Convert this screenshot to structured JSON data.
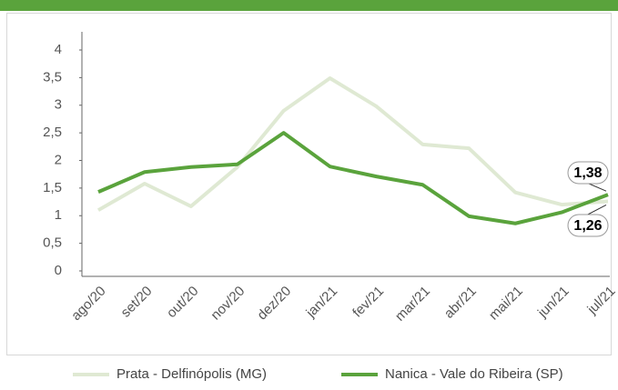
{
  "chart_data": {
    "type": "line",
    "categories": [
      "ago/20",
      "set/20",
      "out/20",
      "nov/20",
      "dez/20",
      "jan/21",
      "fev/21",
      "mar/21",
      "abr/21",
      "mai/21",
      "jun/21",
      "jul/21"
    ],
    "series": [
      {
        "name": "Prata - Delfinópolis (MG)",
        "color": "#dfe9d3",
        "values": [
          1.1,
          1.58,
          1.17,
          1.88,
          2.9,
          3.49,
          2.98,
          2.29,
          2.22,
          1.42,
          1.2,
          1.26
        ],
        "value_labels": [
          null,
          null,
          null,
          null,
          null,
          null,
          null,
          null,
          null,
          null,
          null,
          "1,26"
        ]
      },
      {
        "name": "Nanica - Vale do Ribeira (SP)",
        "color": "#5aa33c",
        "values": [
          1.43,
          1.79,
          1.88,
          1.93,
          2.5,
          1.89,
          1.71,
          1.56,
          0.99,
          0.86,
          1.06,
          1.38
        ],
        "value_labels": [
          null,
          null,
          null,
          null,
          null,
          null,
          null,
          null,
          null,
          null,
          null,
          "1,38"
        ]
      }
    ],
    "ylim": [
      0,
      4
    ],
    "yticks": [
      0,
      {
        "value": 0.5,
        "label": "0,5"
      },
      1,
      {
        "value": 1.5,
        "label": "1,5"
      },
      2,
      {
        "value": 2.5,
        "label": "2,5"
      },
      3,
      {
        "value": 3.5,
        "label": "3,5"
      },
      4
    ],
    "legend": "bottom"
  }
}
